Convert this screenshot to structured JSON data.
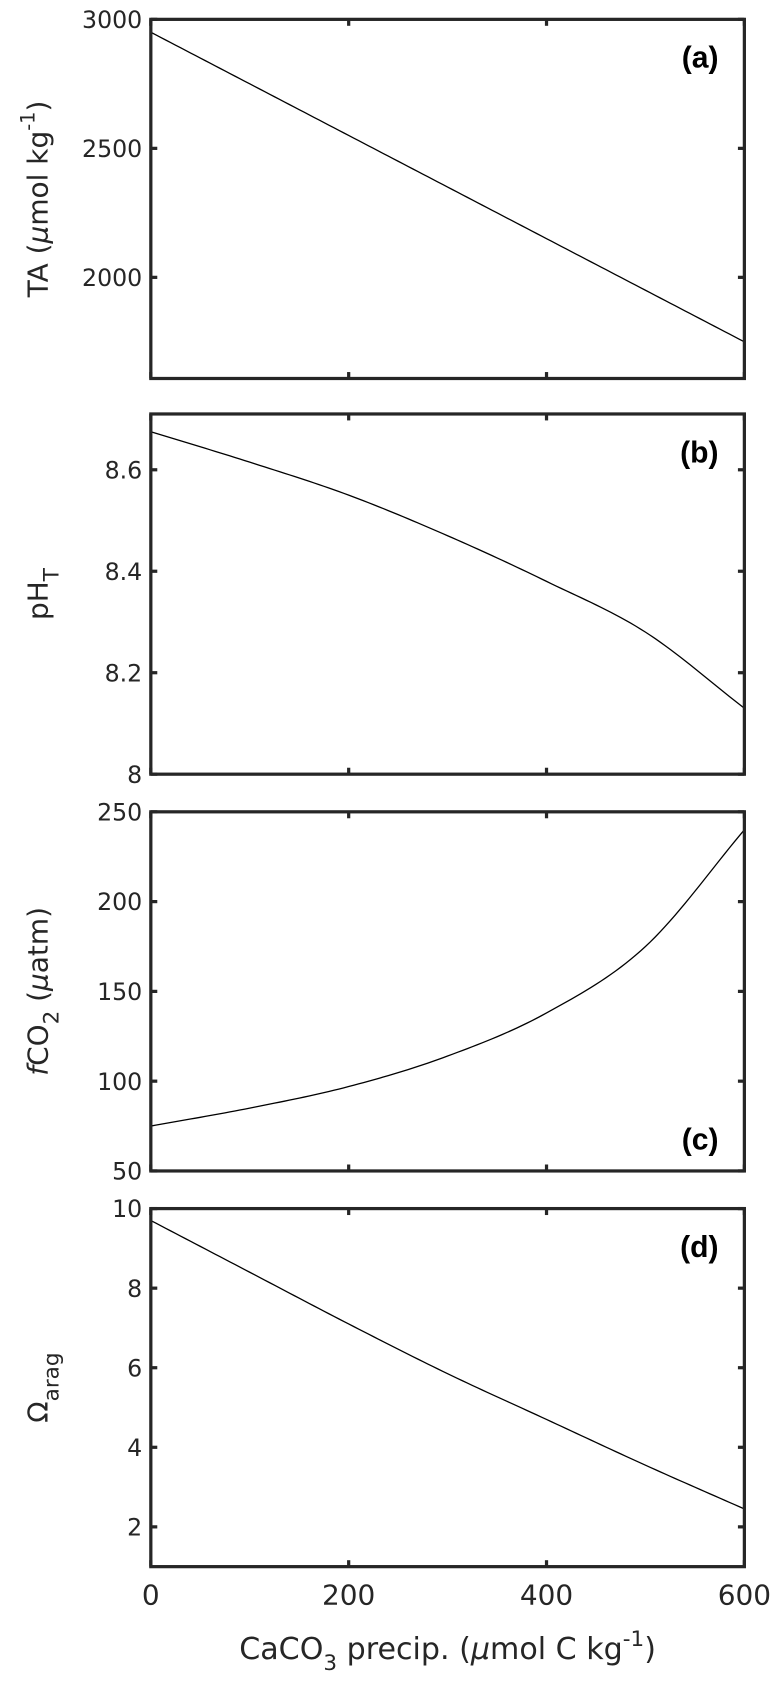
{
  "chart_data": [
    {
      "type": "line",
      "panel_label": "(a)",
      "ylabel": {
        "main": "TA (",
        "mu": "μ",
        "rest": "mol kg",
        "sup": "-1",
        "close": ")"
      },
      "ylim": [
        1608,
        3000
      ],
      "yticks": [
        2000,
        2500,
        3000
      ],
      "x": [
        0,
        100,
        200,
        300,
        400,
        500,
        600
      ],
      "y": [
        2950,
        2750,
        2550,
        2350,
        2150,
        1950,
        1750
      ]
    },
    {
      "type": "line",
      "panel_label": "(b)",
      "ylabel": {
        "main": "pH",
        "sub": "T"
      },
      "ylim": [
        8,
        8.71
      ],
      "yticks": [
        8,
        8.2,
        8.4,
        8.6
      ],
      "x": [
        0,
        100,
        200,
        300,
        400,
        500,
        600
      ],
      "y": [
        8.675,
        8.615,
        8.55,
        8.47,
        8.38,
        8.28,
        8.13
      ]
    },
    {
      "type": "line",
      "panel_label": "(c)",
      "ylabel": {
        "italic": "f",
        "main": "CO",
        "sub": "2",
        "rest": " (",
        "mu": "μ",
        "close": "atm)"
      },
      "ylim": [
        50,
        250
      ],
      "yticks": [
        50,
        100,
        150,
        200,
        250
      ],
      "x": [
        0,
        100,
        200,
        300,
        400,
        500,
        600
      ],
      "y": [
        75,
        85,
        97,
        114,
        138,
        175,
        240
      ]
    },
    {
      "type": "line",
      "panel_label": "(d)",
      "ylabel": {
        "main": "Ω",
        "sub": "arag"
      },
      "ylim": [
        1,
        10
      ],
      "yticks": [
        2,
        4,
        6,
        8,
        10
      ],
      "x": [
        0,
        100,
        200,
        300,
        400,
        500,
        600
      ],
      "y": [
        9.7,
        8.4,
        7.1,
        5.85,
        4.7,
        3.55,
        2.45
      ]
    }
  ],
  "xaxis": {
    "xlim": [
      0,
      600
    ],
    "xticks": [
      0,
      200,
      400,
      600
    ],
    "label": {
      "main": "CaCO",
      "sub": "3",
      "rest": " precip. (",
      "mu": "μ",
      "rest2": "mol C kg",
      "sup": "-1",
      "close": ")"
    }
  },
  "colors": {
    "line": "#000000",
    "axis": "#262626"
  }
}
